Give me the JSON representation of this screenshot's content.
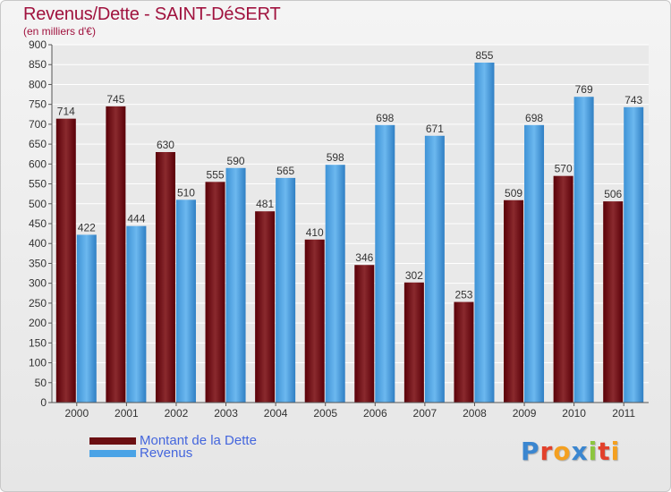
{
  "title": "Revenus/Dette - SAINT-DéSERT",
  "subtitle": "(en milliers d'€)",
  "logo": {
    "letters": [
      "P",
      "r",
      "o",
      "x",
      "i",
      "t",
      "i"
    ]
  },
  "colors": {
    "dette": "#6b0f12",
    "revenus": "#4aa3e6",
    "title": "#a0123e",
    "legend_text": "#4466dd"
  },
  "chart_data": {
    "type": "bar",
    "categories": [
      "2000",
      "2001",
      "2002",
      "2003",
      "2004",
      "2005",
      "2006",
      "2007",
      "2008",
      "2009",
      "2010",
      "2011"
    ],
    "series": [
      {
        "name": "Montant de la Dette",
        "values": [
          714,
          745,
          630,
          555,
          481,
          410,
          346,
          302,
          253,
          509,
          570,
          506
        ]
      },
      {
        "name": "Revenus",
        "values": [
          422,
          444,
          510,
          590,
          565,
          598,
          698,
          671,
          855,
          698,
          769,
          743
        ]
      }
    ],
    "ylim": [
      0,
      900
    ],
    "ytick_step": 50,
    "grid": true,
    "legend": "bottom-left"
  }
}
